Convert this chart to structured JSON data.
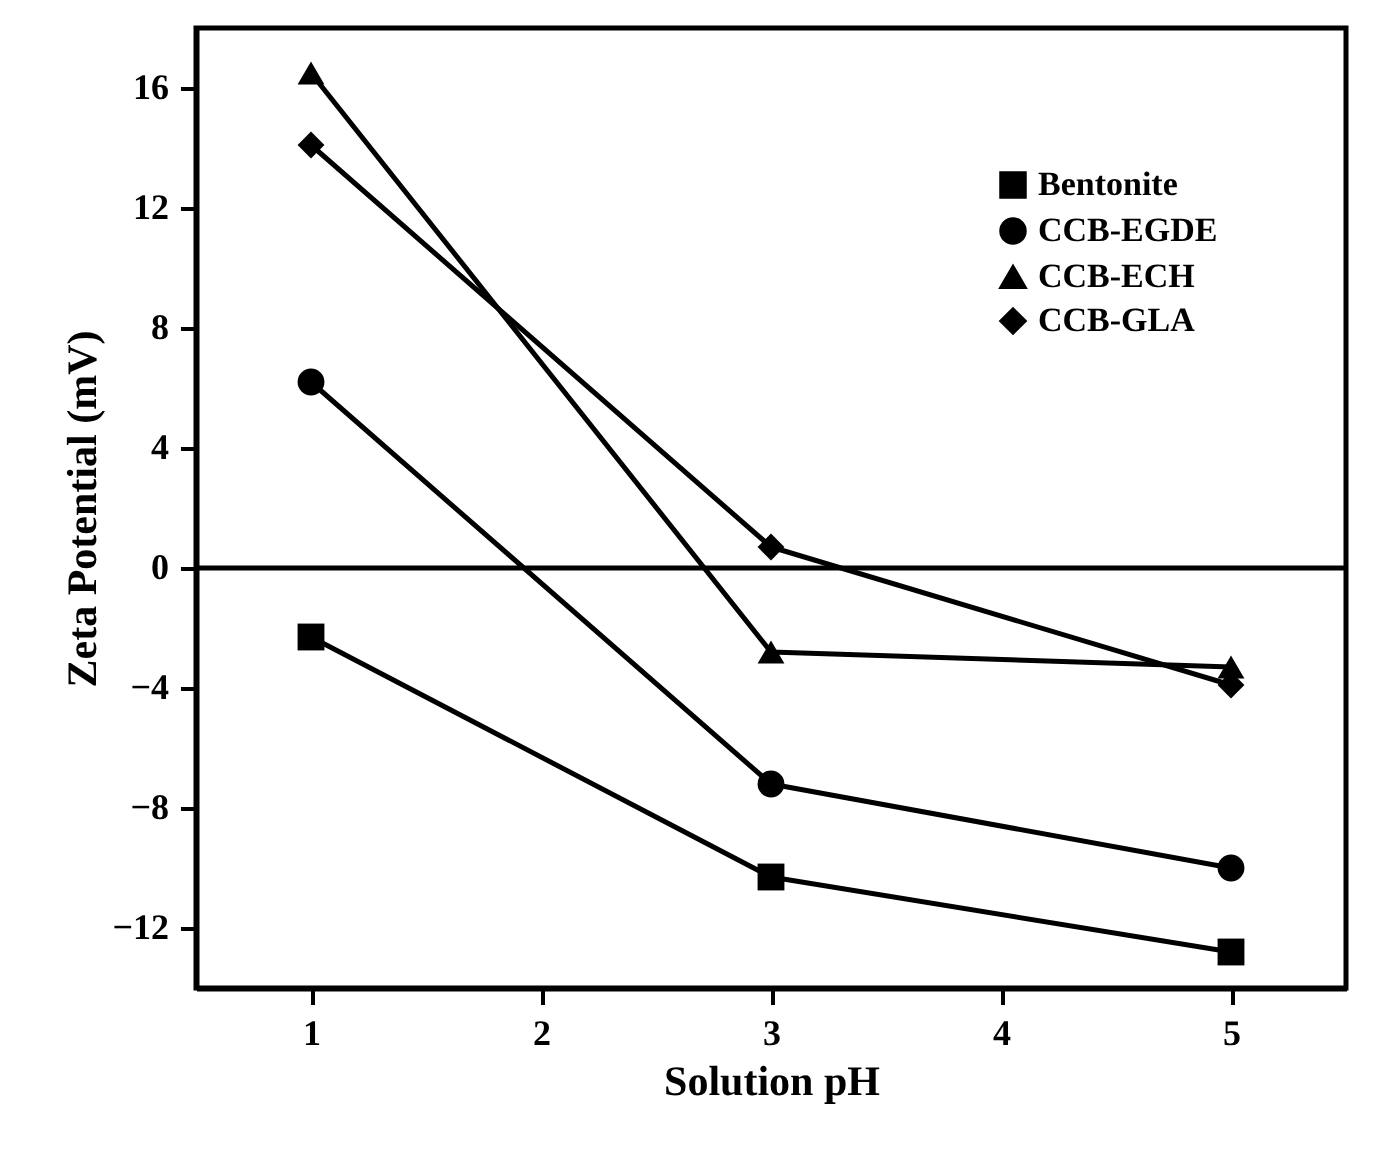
{
  "chart_data": {
    "type": "line",
    "xlabel": "Solution pH",
    "ylabel": "Zeta Potential (mV)",
    "x": [
      1,
      3,
      5
    ],
    "series": [
      {
        "name": "Bentonite",
        "color": "#000000",
        "marker": "square",
        "values": [
          -2.3,
          -10.3,
          -12.8
        ]
      },
      {
        "name": "CCB-EGDE",
        "color": "#000000",
        "marker": "circle",
        "values": [
          6.2,
          -7.2,
          -10
        ]
      },
      {
        "name": "CCB-ECH",
        "color": "#000000",
        "marker": "triangle",
        "values": [
          16.5,
          -2.8,
          -3.3
        ]
      },
      {
        "name": "CCB-GLA",
        "color": "#000000",
        "marker": "diamond",
        "values": [
          14.1,
          0.7,
          -3.9
        ]
      }
    ],
    "xlim": [
      0.5,
      5.5
    ],
    "xticks": [
      1,
      2,
      3,
      4,
      5
    ],
    "ylim": [
      -14,
      18
    ],
    "yticks": [
      -12,
      -8,
      -4,
      0,
      4,
      8,
      12,
      16
    ],
    "ref_lines": [
      {
        "axis": "y",
        "value": 0,
        "color": "#000000"
      }
    ],
    "grid": false,
    "legend": "top right",
    "line_style": "solid"
  }
}
